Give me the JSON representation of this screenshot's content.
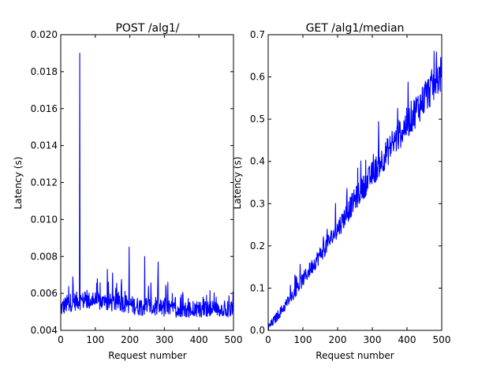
{
  "chart_data": [
    {
      "type": "line",
      "title": "POST /alg1/",
      "xlabel": "Request number",
      "ylabel": "Latency (s)",
      "xlim": [
        0,
        500
      ],
      "ylim": [
        0.004,
        0.02
      ],
      "xticks": [
        0,
        100,
        200,
        300,
        400,
        500
      ],
      "yticks": [
        0.004,
        0.006,
        0.008,
        0.01,
        0.012,
        0.014,
        0.016,
        0.018,
        0.02
      ],
      "xtick_labels": [
        "0",
        "100",
        "200",
        "300",
        "400",
        "500"
      ],
      "ytick_labels": [
        "0.004",
        "0.006",
        "0.008",
        "0.010",
        "0.012",
        "0.014",
        "0.016",
        "0.018",
        "0.020"
      ],
      "grid": false,
      "line_color": "#0000ff",
      "spikes": [
        {
          "x": 55,
          "y": 0.019
        },
        {
          "x": 198,
          "y": 0.0085
        },
        {
          "x": 243,
          "y": 0.008
        },
        {
          "x": 282,
          "y": 0.0077
        },
        {
          "x": 150,
          "y": 0.0071
        },
        {
          "x": 135,
          "y": 0.0073
        },
        {
          "x": 106,
          "y": 0.0068
        },
        {
          "x": 35,
          "y": 0.0069
        },
        {
          "x": 412,
          "y": 0.0058
        },
        {
          "x": 499,
          "y": 0.0061
        }
      ],
      "x_sample": [
        0,
        25,
        50,
        75,
        100,
        125,
        150,
        175,
        200,
        225,
        250,
        275,
        300,
        325,
        350,
        375,
        400,
        425,
        450,
        475,
        500
      ],
      "y_sample": [
        0.0052,
        0.0055,
        0.0056,
        0.0056,
        0.0056,
        0.0055,
        0.0055,
        0.0055,
        0.0054,
        0.0053,
        0.0053,
        0.0052,
        0.0052,
        0.0051,
        0.0051,
        0.0051,
        0.0051,
        0.0051,
        0.0051,
        0.005,
        0.0051
      ]
    },
    {
      "type": "line",
      "title": "GET /alg1/median",
      "xlabel": "Request number",
      "ylabel": "Latency (s)",
      "xlim": [
        0,
        500
      ],
      "ylim": [
        0.0,
        0.7
      ],
      "xticks": [
        0,
        100,
        200,
        300,
        400,
        500
      ],
      "yticks": [
        0.0,
        0.1,
        0.2,
        0.3,
        0.4,
        0.5,
        0.6,
        0.7
      ],
      "xtick_labels": [
        "0",
        "100",
        "200",
        "300",
        "400",
        "500"
      ],
      "ytick_labels": [
        "0.0",
        "0.1",
        "0.2",
        "0.3",
        "0.4",
        "0.5",
        "0.6",
        "0.7"
      ],
      "grid": false,
      "line_color": "#0000ff",
      "x_sample": [
        0,
        50,
        100,
        150,
        200,
        250,
        300,
        350,
        400,
        450,
        500
      ],
      "y_sample": [
        0.005,
        0.06,
        0.12,
        0.18,
        0.24,
        0.31,
        0.37,
        0.43,
        0.49,
        0.55,
        0.61
      ]
    }
  ]
}
